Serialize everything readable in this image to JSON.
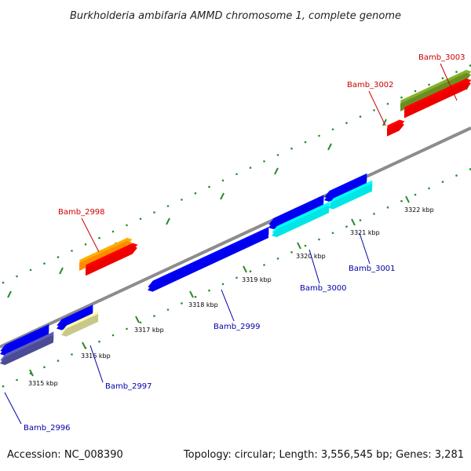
{
  "title": "Burkholderia ambifaria AMMD chromosome 1, complete genome",
  "footer": {
    "accession": "Accession: NC_008390",
    "topology": "Topology: circular; Length: 3,556,545 bp; Genes: 3,281"
  },
  "colors": {
    "backbone": "#8c8c8c",
    "tick": "#2e8b2e",
    "label_red": "#cc0000",
    "label_blue": "#0000aa"
  },
  "ticks": [
    {
      "label": "3315 kbp"
    },
    {
      "label": "3316 kbp"
    },
    {
      "label": "3317 kbp"
    },
    {
      "label": "3318 kbp"
    },
    {
      "label": "3319 kbp"
    },
    {
      "label": "3320 kbp"
    },
    {
      "label": "3321 kbp"
    },
    {
      "label": "3322 kbp"
    }
  ],
  "genes": [
    {
      "name": "Bamb_2996",
      "color": "#4b4b96",
      "strand": "reverse"
    },
    {
      "name": "Bamb_2997",
      "color": "#c8c88a",
      "strand": "reverse"
    },
    {
      "name": "Bamb_2998",
      "color": "#ff8c00",
      "strand": "forward"
    },
    {
      "name": "Bamb_2999",
      "color": "#0000ee",
      "strand": "reverse"
    },
    {
      "name": "Bamb_3000",
      "color": "#00e5e5",
      "strand": "reverse"
    },
    {
      "name": "Bamb_3001",
      "color": "#00e5e5",
      "strand": "reverse"
    },
    {
      "name": "Bamb_3002",
      "color": "#ee0000",
      "strand": "forward"
    },
    {
      "name": "Bamb_3003",
      "color": "#6b8e23",
      "strand": "forward"
    }
  ],
  "unlabeled_features": [
    {
      "color": "#ee0000"
    },
    {
      "color": "#ee0000"
    },
    {
      "color": "#0000ee"
    },
    {
      "color": "#0000ee"
    },
    {
      "color": "#0000ee"
    },
    {
      "color": "#0000ee"
    }
  ]
}
